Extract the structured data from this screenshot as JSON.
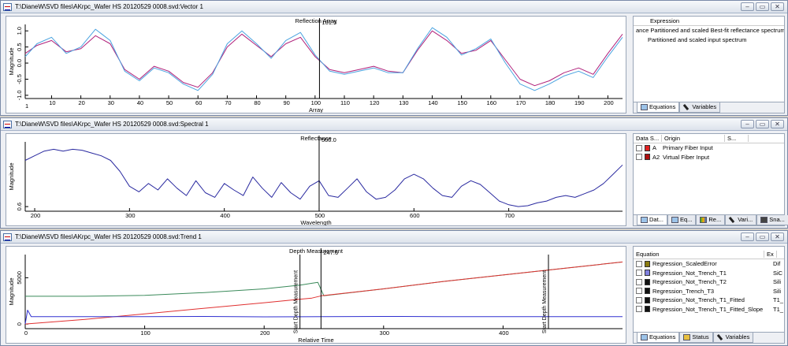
{
  "windows": [
    {
      "title": "T:\\DianeW\\SVD files\\AKrpc_Wafer HS 20120529 0008.svd:Vector 1",
      "plot_title": "Reflection Array",
      "cursor_value": "101.5",
      "xlabel": "Array",
      "ylabel": "Magnitude",
      "x_start_label": "1",
      "xticks": [
        "10",
        "20",
        "30",
        "40",
        "50",
        "60",
        "70",
        "80",
        "90",
        "100",
        "110",
        "120",
        "130",
        "140",
        "150",
        "160",
        "170",
        "180",
        "190",
        "200"
      ],
      "yticks": [
        "1.0",
        "0.5",
        "0.0",
        "-0.5",
        "-1.0"
      ],
      "side": {
        "header": "Expression",
        "items": [
          {
            "label": "ance Partitioned and scaled Best-fit reflectance spectrum"
          },
          {
            "label": "Partitioned and scaled input spectrum"
          }
        ],
        "tabs": [
          {
            "label": "Equations",
            "icon": "equations-icon",
            "active": true
          },
          {
            "label": "Variables",
            "icon": "variables-icon",
            "active": false
          }
        ]
      }
    },
    {
      "title": "T:\\DianeW\\SVD files\\AKrpc_Wafer HS 20120529 0008.svd:Spectral 1",
      "plot_title": "Reflectance",
      "cursor_value": "500.0",
      "xlabel": "Wavelength",
      "ylabel": "Magnitude",
      "xticks": [
        "200",
        "300",
        "400",
        "500",
        "600",
        "700"
      ],
      "yticks": [
        "0.6"
      ],
      "side": {
        "headers": [
          "Data S...",
          "Origin",
          "S..."
        ],
        "items": [
          {
            "code": "A",
            "label": "Primary Fiber Input",
            "color": "#e02020"
          },
          {
            "code": "A2",
            "label": "Virtual Fiber Input",
            "color": "#b01010"
          }
        ],
        "tabs": [
          {
            "label": "Dat...",
            "icon": "data-icon",
            "active": true
          },
          {
            "label": "Eq...",
            "icon": "equations-icon",
            "active": false
          },
          {
            "label": "Re...",
            "icon": "results-icon",
            "active": false
          },
          {
            "label": "Vari...",
            "icon": "variables-icon",
            "active": false
          },
          {
            "label": "Sna...",
            "icon": "snapshot-icon",
            "active": false
          }
        ]
      }
    },
    {
      "title": "T:\\DianeW\\SVD files\\AKrpc_Wafer HS 20120529 0008.svd:Trend 1",
      "plot_title": "Depth Measurement",
      "cursor_value": "247.6",
      "xlabel": "Relative Time",
      "ylabel": "Magnitude",
      "xticks": [
        "0",
        "100",
        "200",
        "300",
        "400"
      ],
      "yticks": [
        "5000",
        "0"
      ],
      "marker_label": "Start Depth Measurement",
      "side": {
        "headers": [
          "Equation",
          "Ex"
        ],
        "items": [
          {
            "label": "Regression_ScaledError",
            "ex": "Dif",
            "color": "#8a7a10"
          },
          {
            "label": "Regression_Not_Trench_T1",
            "ex": "SiC",
            "color": "#8080e0"
          },
          {
            "label": "Regression_Not_Trench_T2",
            "ex": "Sili",
            "color": "#111111"
          },
          {
            "label": "Regression_Trench_T3",
            "ex": "Sili",
            "color": "#111111"
          },
          {
            "label": "Regression_Not_Trench_T1_Fitted",
            "ex": "T1_",
            "color": "#111111"
          },
          {
            "label": "Regression_Not_Trench_T1_Fitted_Slope",
            "ex": "T1_",
            "color": "#111111"
          }
        ],
        "tabs": [
          {
            "label": "Equations",
            "icon": "equations-icon",
            "active": true
          },
          {
            "label": "Status",
            "icon": "status-icon",
            "active": false
          },
          {
            "label": "Variables",
            "icon": "variables-icon",
            "active": false
          }
        ]
      }
    }
  ],
  "window_buttons": {
    "minimize": "–",
    "restore": "▭",
    "close": "✕"
  },
  "colors": {
    "series_a": "#b0207a",
    "series_b": "#4aa3e0",
    "spectrum": "#2a2aa0",
    "trend_green": "#3a8a5a",
    "trend_red": "#e03030",
    "trend_blue": "#3030d0"
  },
  "chart_data": [
    {
      "type": "line",
      "title": "Reflection Array",
      "xlabel": "Array",
      "ylabel": "Magnitude",
      "xlim": [
        1,
        205
      ],
      "ylim": [
        -1.1,
        1.2
      ],
      "series": [
        {
          "name": "Partitioned and scaled Best-fit reflectance spectrum",
          "x": [
            1,
            5,
            10,
            15,
            20,
            25,
            30,
            35,
            40,
            45,
            50,
            55,
            60,
            65,
            70,
            75,
            80,
            85,
            90,
            95,
            100,
            105,
            110,
            115,
            120,
            125,
            130,
            135,
            140,
            145,
            150,
            155,
            160,
            165,
            170,
            175,
            180,
            185,
            190,
            195,
            200,
            205
          ],
          "y": [
            0.3,
            0.55,
            0.7,
            0.35,
            0.45,
            0.85,
            0.6,
            -0.2,
            -0.5,
            -0.1,
            -0.25,
            -0.6,
            -0.75,
            -0.3,
            0.5,
            0.9,
            0.55,
            0.2,
            0.6,
            0.8,
            0.2,
            -0.2,
            -0.3,
            -0.2,
            -0.1,
            -0.25,
            -0.3,
            0.4,
            1.0,
            0.7,
            0.3,
            0.4,
            0.7,
            0.1,
            -0.5,
            -0.7,
            -0.55,
            -0.3,
            -0.15,
            -0.35,
            0.3,
            0.9
          ]
        },
        {
          "name": "Partitioned and scaled input spectrum",
          "x": [
            1,
            5,
            10,
            15,
            20,
            25,
            30,
            35,
            40,
            45,
            50,
            55,
            60,
            65,
            70,
            75,
            80,
            85,
            90,
            95,
            100,
            105,
            110,
            115,
            120,
            125,
            130,
            135,
            140,
            145,
            150,
            155,
            160,
            165,
            170,
            175,
            180,
            185,
            190,
            195,
            200,
            205
          ],
          "y": [
            0.2,
            0.6,
            0.8,
            0.3,
            0.5,
            1.05,
            0.7,
            -0.25,
            -0.55,
            -0.15,
            -0.3,
            -0.65,
            -0.85,
            -0.35,
            0.6,
            1.0,
            0.6,
            0.15,
            0.7,
            0.95,
            0.25,
            -0.25,
            -0.35,
            -0.25,
            -0.15,
            -0.3,
            -0.3,
            0.45,
            1.1,
            0.8,
            0.25,
            0.45,
            0.75,
            0.0,
            -0.65,
            -0.85,
            -0.65,
            -0.4,
            -0.25,
            -0.45,
            0.2,
            0.8
          ]
        }
      ]
    },
    {
      "type": "line",
      "title": "Reflectance",
      "xlabel": "Wavelength",
      "ylabel": "Magnitude",
      "xlim": [
        190,
        820
      ],
      "ylim": [
        0.55,
        1.3
      ],
      "series": [
        {
          "name": "",
          "x": [
            190,
            200,
            210,
            220,
            230,
            240,
            250,
            260,
            270,
            280,
            290,
            300,
            310,
            320,
            330,
            340,
            350,
            360,
            370,
            380,
            390,
            400,
            410,
            420,
            430,
            440,
            450,
            460,
            470,
            480,
            490,
            500,
            510,
            520,
            530,
            540,
            550,
            560,
            570,
            580,
            590,
            600,
            610,
            620,
            630,
            640,
            650,
            660,
            670,
            680,
            690,
            700,
            710,
            720,
            730,
            740,
            750,
            760,
            770,
            780,
            790,
            800,
            810,
            820
          ],
          "y": [
            1.1,
            1.15,
            1.2,
            1.22,
            1.2,
            1.22,
            1.21,
            1.18,
            1.15,
            1.1,
            0.98,
            0.82,
            0.76,
            0.85,
            0.78,
            0.9,
            0.8,
            0.72,
            0.88,
            0.75,
            0.7,
            0.85,
            0.78,
            0.72,
            0.92,
            0.8,
            0.7,
            0.86,
            0.75,
            0.68,
            0.82,
            0.88,
            0.72,
            0.7,
            0.8,
            0.9,
            0.76,
            0.68,
            0.7,
            0.78,
            0.9,
            0.95,
            0.9,
            0.8,
            0.72,
            0.7,
            0.82,
            0.88,
            0.84,
            0.75,
            0.66,
            0.62,
            0.6,
            0.61,
            0.64,
            0.66,
            0.7,
            0.72,
            0.7,
            0.74,
            0.78,
            0.85,
            0.95,
            1.05
          ]
        }
      ]
    },
    {
      "type": "line",
      "title": "Depth Measurement",
      "xlabel": "Relative Time",
      "ylabel": "Magnitude",
      "xlim": [
        0,
        500
      ],
      "ylim": [
        -500,
        7500
      ],
      "series": [
        {
          "name": "",
          "x": [
            0,
            50,
            100,
            150,
            200,
            230,
            240,
            245,
            250,
            300,
            350,
            400,
            450,
            500
          ],
          "y": [
            3000,
            3000,
            3100,
            3400,
            3800,
            4200,
            4400,
            4500,
            3050,
            3800,
            4600,
            5300,
            6000,
            6700
          ]
        },
        {
          "name": "",
          "x": [
            0,
            50,
            100,
            150,
            200,
            240,
            248,
            300,
            350,
            400,
            450,
            500
          ],
          "y": [
            0,
            500,
            1100,
            1700,
            2300,
            2800,
            3050,
            3800,
            4600,
            5300,
            6000,
            6700
          ]
        },
        {
          "name": "",
          "x": [
            0,
            2,
            5,
            50,
            100,
            150,
            200,
            250,
            300,
            350,
            400,
            450,
            500
          ],
          "y": [
            0,
            1500,
            800,
            800,
            800,
            820,
            780,
            800,
            820,
            800,
            800,
            800,
            800
          ]
        }
      ],
      "markers_x": [
        230,
        247.6,
        438
      ]
    }
  ]
}
